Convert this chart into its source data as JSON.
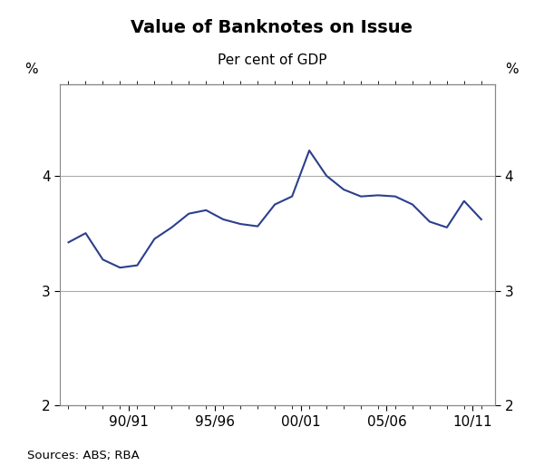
{
  "title": "Value of Banknotes on Issue",
  "subtitle": "Per cent of GDP",
  "source": "Sources: ABS; RBA",
  "line_color": "#2b3f8c",
  "line_width": 1.5,
  "background_color": "#ffffff",
  "grid_color": "#aaaaaa",
  "ylim": [
    2,
    4.8
  ],
  "yticks": [
    2,
    3,
    4
  ],
  "ylabel_left": "%",
  "ylabel_right": "%",
  "xtick_labels": [
    "90/91",
    "95/96",
    "00/01",
    "05/06",
    "10/11"
  ],
  "x_values": [
    1987,
    1988,
    1989,
    1990,
    1991,
    1992,
    1993,
    1994,
    1995,
    1996,
    1997,
    1998,
    1999,
    2000,
    2001,
    2002,
    2003,
    2004,
    2005,
    2006,
    2007,
    2008,
    2009,
    2010,
    2011
  ],
  "y_values": [
    3.42,
    3.5,
    3.27,
    3.2,
    3.22,
    3.45,
    3.55,
    3.67,
    3.7,
    3.62,
    3.58,
    3.56,
    3.75,
    3.82,
    4.22,
    4.0,
    3.88,
    3.82,
    3.83,
    3.82,
    3.75,
    3.6,
    3.55,
    3.78,
    3.62
  ],
  "xlim_start": 1986.5,
  "xlim_end": 2011.8,
  "xtick_positions": [
    1990.5,
    1995.5,
    2000.5,
    2005.5,
    2010.5
  ]
}
